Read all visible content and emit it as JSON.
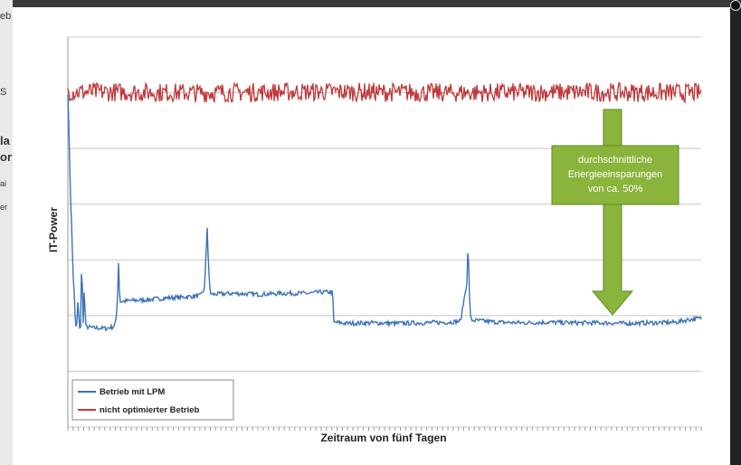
{
  "background": {
    "left_panel_fragments": [
      "eb",
      "S",
      "la",
      "or",
      "ai",
      "er"
    ]
  },
  "colors": {
    "series_lpm": "#3a72b8",
    "series_not_optimized": "#c0393b",
    "annotation_fill": "#8ab43c",
    "annotation_border": "#5e8a1f",
    "grid": "#c8c8c8",
    "page_bg": "#2a2a2a"
  },
  "chart_data": {
    "type": "line",
    "title": "",
    "xlabel": "Zeitraum von fünf Tagen",
    "ylabel": "IT-Power",
    "ylim": [
      0,
      7
    ],
    "xlim": [
      0,
      5
    ],
    "grid": "horizontal",
    "tick_labels_shown": false,
    "legend_position": "bottom-left",
    "series": [
      {
        "name": "Betrieb mit LPM",
        "color": "#3a72b8",
        "points": [
          [
            0.0,
            6.0
          ],
          [
            0.01,
            5.2
          ],
          [
            0.02,
            4.2
          ],
          [
            0.03,
            3.6
          ],
          [
            0.04,
            2.8
          ],
          [
            0.05,
            2.4
          ],
          [
            0.06,
            1.8
          ],
          [
            0.07,
            1.8
          ],
          [
            0.08,
            2.3
          ],
          [
            0.09,
            1.8
          ],
          [
            0.1,
            1.8
          ],
          [
            0.11,
            3.1
          ],
          [
            0.12,
            1.8
          ],
          [
            0.13,
            2.5
          ],
          [
            0.14,
            1.8
          ],
          [
            0.2,
            1.78
          ],
          [
            0.3,
            1.77
          ],
          [
            0.36,
            1.8
          ],
          [
            0.38,
            1.9
          ],
          [
            0.39,
            2.2
          ],
          [
            0.4,
            2.95
          ],
          [
            0.41,
            2.25
          ],
          [
            0.5,
            2.27
          ],
          [
            0.6,
            2.28
          ],
          [
            0.7,
            2.3
          ],
          [
            0.8,
            2.32
          ],
          [
            0.9,
            2.33
          ],
          [
            1.0,
            2.35
          ],
          [
            1.05,
            2.36
          ],
          [
            1.08,
            2.5
          ],
          [
            1.1,
            3.6
          ],
          [
            1.11,
            2.9
          ],
          [
            1.12,
            2.5
          ],
          [
            1.13,
            2.38
          ],
          [
            1.3,
            2.4
          ],
          [
            1.5,
            2.38
          ],
          [
            1.7,
            2.4
          ],
          [
            1.9,
            2.4
          ],
          [
            2.0,
            2.42
          ],
          [
            2.09,
            2.42
          ],
          [
            2.1,
            1.88
          ],
          [
            2.2,
            1.86
          ],
          [
            2.4,
            1.87
          ],
          [
            2.6,
            1.86
          ],
          [
            2.8,
            1.87
          ],
          [
            3.0,
            1.88
          ],
          [
            3.1,
            1.9
          ],
          [
            3.15,
            2.6
          ],
          [
            3.16,
            3.3
          ],
          [
            3.17,
            2.4
          ],
          [
            3.18,
            1.92
          ],
          [
            3.4,
            1.88
          ],
          [
            3.6,
            1.87
          ],
          [
            3.8,
            1.88
          ],
          [
            4.0,
            1.87
          ],
          [
            4.2,
            1.87
          ],
          [
            4.4,
            1.86
          ],
          [
            4.6,
            1.87
          ],
          [
            4.8,
            1.88
          ],
          [
            4.9,
            1.93
          ],
          [
            5.0,
            1.95
          ]
        ]
      },
      {
        "name": "nicht optimierter Betrieb",
        "color": "#c0393b",
        "points": [
          [
            0.0,
            6.02
          ],
          [
            1.0,
            6.0
          ],
          [
            2.0,
            6.02
          ],
          [
            3.0,
            6.0
          ],
          [
            4.0,
            6.01
          ],
          [
            5.0,
            6.0
          ]
        ]
      }
    ],
    "annotations": [
      {
        "lines": [
          "durchschnittliche",
          "Energieeinsparungen",
          "von ca. 50%"
        ],
        "from_x": 4.3,
        "from_y": 5.7,
        "to_x": 4.3,
        "to_y": 1.95
      }
    ]
  }
}
